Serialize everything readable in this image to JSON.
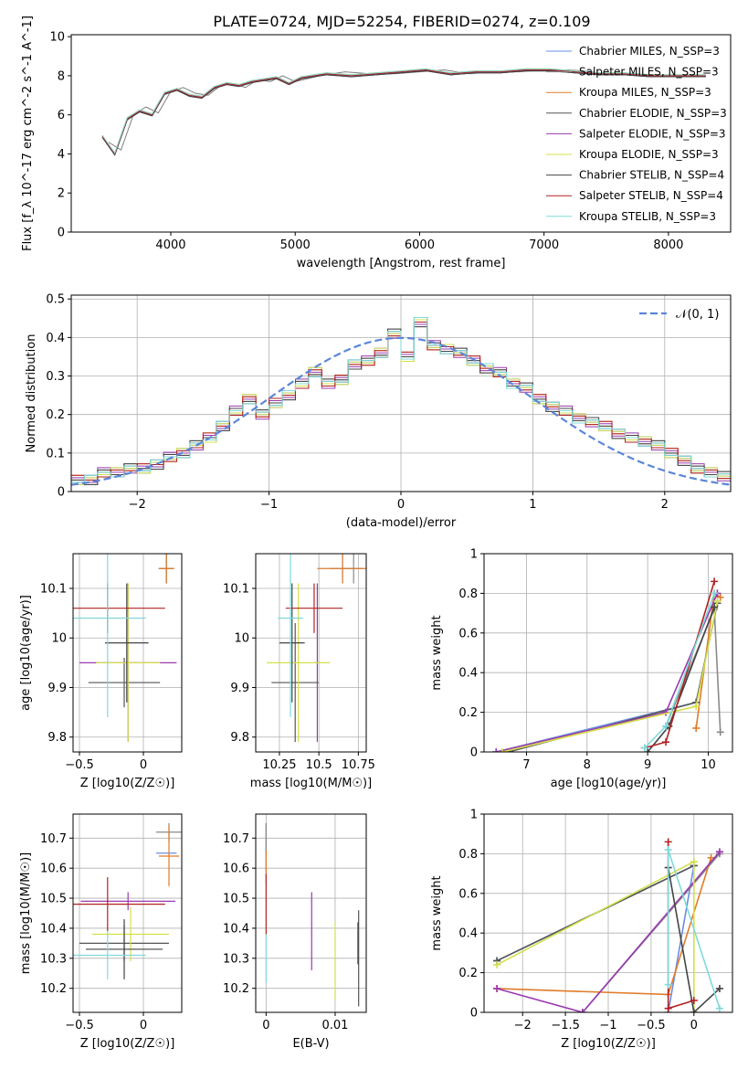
{
  "figure_title": "PLATE=0724, MJD=52254, FIBERID=0274, z=0.109",
  "models": [
    {
      "name": "Chabrier MILES, N_SSP=3",
      "color": "#6a8fe0"
    },
    {
      "name": "Salpeter MILES, N_SSP=3",
      "color": "#8a8a8a"
    },
    {
      "name": "Kroupa MILES, N_SSP=3",
      "color": "#e07b2a"
    },
    {
      "name": "Chabrier ELODIE, N_SSP=3",
      "color": "#555555"
    },
    {
      "name": "Salpeter ELODIE, N_SSP=3",
      "color": "#9a3ab0"
    },
    {
      "name": "Kroupa ELODIE, N_SSP=3",
      "color": "#d4e04a"
    },
    {
      "name": "Chabrier STELIB, N_SSP=4",
      "color": "#444444"
    },
    {
      "name": "Salpeter STELIB, N_SSP=4",
      "color": "#b22222"
    },
    {
      "name": "Kroupa STELIB, N_SSP=3",
      "color": "#7fdada"
    }
  ],
  "chart_data": [
    {
      "id": "spectrum",
      "type": "line",
      "xlabel": "wavelength [Angstrom, rest frame]",
      "ylabel": "Flux [f_λ 10^-17 erg cm^-2 s^-1 A^-1]",
      "xlim": [
        3200,
        8500
      ],
      "ylim": [
        0,
        10.1
      ],
      "xticks": [
        4000,
        5000,
        6000,
        7000,
        8000
      ],
      "yticks": [
        0,
        2,
        4,
        6,
        8,
        10
      ],
      "grid": false,
      "legend": "right",
      "data_series": {
        "name": "data",
        "color": "#808080",
        "x": [
          3500,
          3600,
          3700,
          3800,
          3900,
          4000,
          4100,
          4200,
          4300,
          4400,
          4500,
          4600,
          4700,
          4800,
          4900,
          5000,
          5200,
          5400,
          5600,
          5800,
          6000,
          6200,
          6400,
          6600,
          6800,
          7000,
          7200,
          7400
        ],
        "y": [
          4.6,
          4.2,
          6.0,
          6.4,
          6.1,
          7.2,
          7.4,
          7.1,
          7.0,
          7.5,
          7.6,
          7.4,
          7.8,
          7.7,
          8.0,
          7.7,
          8.0,
          8.2,
          8.1,
          8.1,
          8.2,
          8.3,
          8.1,
          8.2,
          8.2,
          8.3,
          8.3,
          8.2
        ]
      },
      "model_curve": {
        "x": [
          3450,
          3550,
          3650,
          3750,
          3850,
          3950,
          4050,
          4150,
          4250,
          4350,
          4450,
          4550,
          4650,
          4750,
          4850,
          4950,
          5050,
          5250,
          5450,
          5650,
          5850,
          6050,
          6250,
          6450,
          6650,
          6850,
          7050,
          7250,
          7450,
          7650,
          7850,
          8050,
          8300
        ],
        "y": [
          4.9,
          4.0,
          5.8,
          6.2,
          6.0,
          7.1,
          7.3,
          7.0,
          6.9,
          7.4,
          7.6,
          7.5,
          7.7,
          7.8,
          7.9,
          7.6,
          7.9,
          8.1,
          8.0,
          8.1,
          8.2,
          8.3,
          8.1,
          8.2,
          8.2,
          8.3,
          8.3,
          8.2,
          8.1,
          8.1,
          8.0,
          8.0,
          8.0
        ]
      }
    },
    {
      "id": "residuals",
      "type": "line",
      "xlabel": "(data-model)/error",
      "ylabel": "Normed distribution",
      "xlim": [
        -2.5,
        2.5
      ],
      "ylim": [
        0,
        0.51
      ],
      "xticks": [
        -2,
        -1,
        0,
        1,
        2
      ],
      "yticks": [
        0.0,
        0.1,
        0.2,
        0.3,
        0.4,
        0.5
      ],
      "grid": true,
      "legend": "top-right",
      "legend_label": "𝒩(0, 1)",
      "hist_bins": [
        -2.5,
        -2.4,
        -2.3,
        -2.2,
        -2.1,
        -2.0,
        -1.9,
        -1.8,
        -1.7,
        -1.6,
        -1.5,
        -1.4,
        -1.3,
        -1.2,
        -1.1,
        -1.0,
        -0.9,
        -0.8,
        -0.7,
        -0.6,
        -0.5,
        -0.4,
        -0.3,
        -0.2,
        -0.1,
        0.0,
        0.1,
        0.2,
        0.3,
        0.4,
        0.5,
        0.6,
        0.7,
        0.8,
        0.9,
        1.0,
        1.1,
        1.2,
        1.3,
        1.4,
        1.5,
        1.6,
        1.7,
        1.8,
        1.9,
        2.0,
        2.1,
        2.2,
        2.3,
        2.4
      ],
      "hist_values": [
        0.03,
        0.03,
        0.05,
        0.05,
        0.06,
        0.06,
        0.07,
        0.09,
        0.1,
        0.12,
        0.14,
        0.17,
        0.21,
        0.24,
        0.2,
        0.23,
        0.25,
        0.28,
        0.31,
        0.28,
        0.29,
        0.33,
        0.34,
        0.36,
        0.41,
        0.35,
        0.44,
        0.38,
        0.37,
        0.36,
        0.34,
        0.32,
        0.31,
        0.28,
        0.27,
        0.24,
        0.22,
        0.21,
        0.19,
        0.18,
        0.17,
        0.15,
        0.14,
        0.13,
        0.12,
        0.1,
        0.08,
        0.06,
        0.05,
        0.04
      ]
    },
    {
      "id": "age_vs_Z",
      "type": "scatter",
      "xlabel": "Z [log10(Z/Z☉)]",
      "ylabel": "age  [log10(age/yr)]",
      "xlim": [
        -0.55,
        0.3
      ],
      "ylim": [
        9.77,
        10.17
      ],
      "xticks": [
        -0.5,
        0.0
      ],
      "yticks": [
        9.8,
        9.9,
        10.0,
        10.1
      ],
      "grid": true,
      "points": [
        {
          "x": 0.18,
          "y": 10.14,
          "xerr": 0.06,
          "yerr": 0.03
        },
        {
          "x": 0.18,
          "y": 10.14,
          "xerr": 0.06,
          "yerr": 0.03
        },
        {
          "x": 0.18,
          "y": 10.14,
          "xerr": 0.06,
          "yerr": 0.03
        },
        {
          "x": -0.15,
          "y": 9.91,
          "xerr": 0.28,
          "yerr": 0.05
        },
        {
          "x": -0.12,
          "y": 9.95,
          "xerr": 0.38,
          "yerr": 0.16
        },
        {
          "x": -0.12,
          "y": 9.95,
          "xerr": 0.25,
          "yerr": 0.16
        },
        {
          "x": -0.13,
          "y": 9.99,
          "xerr": 0.17,
          "yerr": 0.12
        },
        {
          "x": -0.28,
          "y": 10.06,
          "xerr": 0.45,
          "yerr": 0.05
        },
        {
          "x": -0.28,
          "y": 10.04,
          "xerr": 0.3,
          "yerr": 0.2
        }
      ]
    },
    {
      "id": "age_vs_mass",
      "type": "scatter",
      "xlabel": "mass [log10(M/M☉)]",
      "ylabel": "",
      "xlim": [
        10.1,
        10.8
      ],
      "ylim": [
        9.77,
        10.17
      ],
      "xticks": [
        10.25,
        10.5,
        10.75
      ],
      "yticks": [
        9.8,
        9.9,
        10.0,
        10.1
      ],
      "grid": true,
      "points": [
        {
          "x": 10.65,
          "y": 10.14,
          "xerr": 0.08,
          "yerr": 0.03
        },
        {
          "x": 10.72,
          "y": 10.14,
          "xerr": 0.06,
          "yerr": 0.03
        },
        {
          "x": 10.65,
          "y": 10.14,
          "xerr": 0.16,
          "yerr": 0.03
        },
        {
          "x": 10.35,
          "y": 9.91,
          "xerr": 0.15,
          "yerr": 0.12
        },
        {
          "x": 10.49,
          "y": 9.95,
          "xerr": 0.02,
          "yerr": 0.16
        },
        {
          "x": 10.37,
          "y": 9.95,
          "xerr": 0.2,
          "yerr": 0.16
        },
        {
          "x": 10.33,
          "y": 9.99,
          "xerr": 0.08,
          "yerr": 0.12
        },
        {
          "x": 10.47,
          "y": 10.06,
          "xerr": 0.18,
          "yerr": 0.05
        },
        {
          "x": 10.32,
          "y": 10.04,
          "xerr": 0.08,
          "yerr": 0.2
        }
      ]
    },
    {
      "id": "weight_vs_age",
      "type": "line",
      "xlabel": "age  [log10(age/yr)]",
      "ylabel": "mass weight",
      "xlim": [
        6.3,
        10.4
      ],
      "ylim": [
        0,
        1.0
      ],
      "xticks": [
        7,
        8,
        9,
        10
      ],
      "yticks": [
        0.0,
        0.2,
        0.4,
        0.6,
        0.8,
        1.0
      ],
      "grid": true,
      "series": [
        {
          "x": [
            6.5,
            9.8,
            10.15
          ],
          "y": [
            0.0,
            0.25,
            0.75
          ]
        },
        {
          "x": [
            9.3,
            10.1,
            10.2
          ],
          "y": [
            0.13,
            0.72,
            0.1
          ]
        },
        {
          "x": [
            9.8,
            10.1,
            10.2
          ],
          "y": [
            0.12,
            0.8,
            0.78
          ]
        },
        {
          "x": [
            6.7,
            9.8,
            10.15
          ],
          "y": [
            0.0,
            0.25,
            0.75
          ]
        },
        {
          "x": [
            6.5,
            9.3,
            10.15
          ],
          "y": [
            0.0,
            0.2,
            0.8
          ]
        },
        {
          "x": [
            6.6,
            9.8,
            10.15
          ],
          "y": [
            0.0,
            0.23,
            0.76
          ]
        },
        {
          "x": [
            9.0,
            9.35,
            10.1
          ],
          "y": [
            0.0,
            0.13,
            0.73
          ]
        },
        {
          "x": [
            8.95,
            9.3,
            10.1
          ],
          "y": [
            0.02,
            0.05,
            0.86
          ]
        },
        {
          "x": [
            8.95,
            9.3,
            10.1
          ],
          "y": [
            0.02,
            0.13,
            0.8
          ]
        }
      ]
    },
    {
      "id": "mass_vs_Z",
      "type": "scatter",
      "xlabel": "Z [log10(Z/Z☉)]",
      "ylabel": "mass [log10(M/M☉)]",
      "xlim": [
        -0.55,
        0.3
      ],
      "ylim": [
        10.12,
        10.78
      ],
      "xticks": [
        -0.5,
        0.0
      ],
      "yticks": [
        10.2,
        10.3,
        10.4,
        10.5,
        10.6,
        10.7
      ],
      "grid": true,
      "points": [
        {
          "x": 0.18,
          "y": 10.65,
          "xerr": 0.08,
          "yerr": 0.0
        },
        {
          "x": 0.2,
          "y": 10.72,
          "xerr": 0.1,
          "yerr": 0.03
        },
        {
          "x": 0.2,
          "y": 10.64,
          "xerr": 0.08,
          "yerr": 0.1
        },
        {
          "x": -0.15,
          "y": 10.35,
          "xerr": 0.35,
          "yerr": 0.06
        },
        {
          "x": -0.12,
          "y": 10.49,
          "xerr": 0.37,
          "yerr": 0.03
        },
        {
          "x": -0.1,
          "y": 10.38,
          "xerr": 0.3,
          "yerr": 0.09
        },
        {
          "x": -0.15,
          "y": 10.33,
          "xerr": 0.3,
          "yerr": 0.1
        },
        {
          "x": -0.28,
          "y": 10.48,
          "xerr": 0.45,
          "yerr": 0.09
        },
        {
          "x": -0.28,
          "y": 10.31,
          "xerr": 0.3,
          "yerr": 0.08
        }
      ]
    },
    {
      "id": "mass_vs_ebv",
      "type": "scatter",
      "xlabel": "E(B-V)",
      "ylabel": "",
      "xlim": [
        -0.0015,
        0.0145
      ],
      "ylim": [
        10.12,
        10.78
      ],
      "xticks": [
        0.0,
        0.01
      ],
      "yticks": [
        10.2,
        10.3,
        10.4,
        10.5,
        10.6,
        10.7
      ],
      "grid": true,
      "points": [
        {
          "x": 0.0,
          "y": 10.65,
          "xerr": 0,
          "yerr": 0.1
        },
        {
          "x": 0.0,
          "y": 10.7,
          "xerr": 0,
          "yerr": 0.05
        },
        {
          "x": 0.0,
          "y": 10.62,
          "xerr": 0,
          "yerr": 0.04
        },
        {
          "x": 0.0134,
          "y": 10.3,
          "xerr": 0,
          "yerr": 0.16
        },
        {
          "x": 0.0066,
          "y": 10.39,
          "xerr": 0,
          "yerr": 0.13
        },
        {
          "x": 0.01,
          "y": 10.29,
          "xerr": 0,
          "yerr": 0.13
        },
        {
          "x": 0.0133,
          "y": 10.35,
          "xerr": 0,
          "yerr": 0.07
        },
        {
          "x": 0.0,
          "y": 10.48,
          "xerr": 0,
          "yerr": 0.1
        },
        {
          "x": 0.0,
          "y": 10.3,
          "xerr": 0,
          "yerr": 0.08
        }
      ]
    },
    {
      "id": "weight_vs_Z",
      "type": "line",
      "xlabel": "Z [log10(Z/Z☉)]",
      "ylabel": "mass weight",
      "xlim": [
        -2.45,
        0.45
      ],
      "ylim": [
        0,
        1.0
      ],
      "xticks": [
        -2.0,
        -1.5,
        -1.0,
        -0.5,
        0.0
      ],
      "yticks": [
        0.0,
        0.2,
        0.4,
        0.6,
        0.8,
        1.0
      ],
      "grid": true,
      "series": [
        {
          "x": [
            -2.3,
            0.0,
            -0.3
          ],
          "y": [
            0.26,
            0.74,
            0.0
          ]
        },
        {
          "x": [
            -1.3,
            0.3
          ],
          "y": [
            0.0,
            0.8
          ]
        },
        {
          "x": [
            -2.3,
            -0.3,
            0.2
          ],
          "y": [
            0.12,
            0.09,
            0.78
          ]
        },
        {
          "x": [
            -2.3,
            0.0
          ],
          "y": [
            0.26,
            0.74
          ]
        },
        {
          "x": [
            -2.3,
            -1.3,
            0.3
          ],
          "y": [
            0.12,
            0.0,
            0.81
          ]
        },
        {
          "x": [
            -2.3,
            0.0,
            0.0
          ],
          "y": [
            0.24,
            0.76,
            0.0
          ]
        },
        {
          "x": [
            -0.3,
            0.0,
            0.3
          ],
          "y": [
            0.73,
            0.0,
            0.12
          ]
        },
        {
          "x": [
            -0.3,
            -0.3,
            0.0
          ],
          "y": [
            0.86,
            0.02,
            0.06
          ]
        },
        {
          "x": [
            -0.3,
            -0.3,
            0.3
          ],
          "y": [
            0.14,
            0.82,
            0.02
          ]
        }
      ]
    }
  ]
}
